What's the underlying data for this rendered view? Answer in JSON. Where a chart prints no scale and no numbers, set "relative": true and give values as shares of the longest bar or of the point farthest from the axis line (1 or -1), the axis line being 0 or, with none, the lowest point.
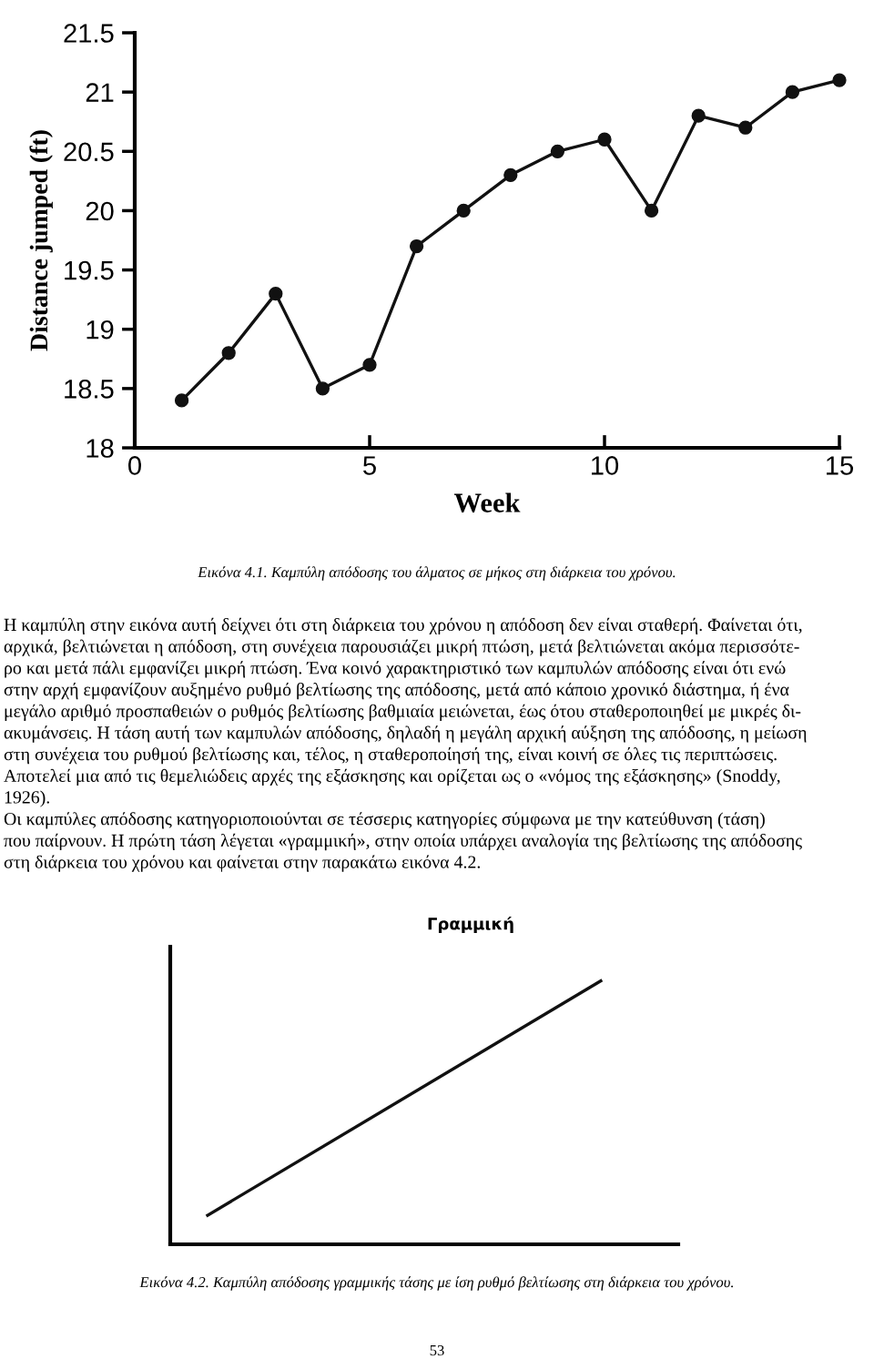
{
  "chart_data": [
    {
      "type": "line",
      "xlabel": "Week",
      "ylabel": "Distance jumped (ft)",
      "x": [
        1,
        2,
        3,
        4,
        5,
        6,
        7,
        8,
        9,
        10,
        11,
        12,
        13,
        14,
        15
      ],
      "series": [
        {
          "color": "#111111",
          "values": [
            18.4,
            18.8,
            19.3,
            18.5,
            18.7,
            19.7,
            20.0,
            20.3,
            20.5,
            20.6,
            20.0,
            20.8,
            20.7,
            21.0,
            21.1
          ]
        }
      ],
      "xlim": [
        0,
        15
      ],
      "xticks": [
        0,
        5,
        10,
        15
      ],
      "ylim": [
        18,
        21.5
      ],
      "yticks": [
        18,
        18.5,
        19,
        19.5,
        20,
        20.5,
        21,
        21.5
      ],
      "marker": "circle",
      "line_style": "solid",
      "grid": false,
      "legend": false,
      "annotations": [
        "Εικόνα 4.1. Καμπύλη απόδοσης του άλματος σε μήκος στη διάρκεια του χρόνου.",
        "Η καμπύλη στην εικόνα αυτή δείχνει ότι στη διάρκεια του χρόνου η απόδοση δεν είναι σταθερή. Φαίνεται ότι,",
        "αρχικά, βελτιώνεται η απόδοση, στη συνέχεια παρουσιάζει μικρή πτώση, μετά βελτιώνεται ακόμα περισσότε-",
        "ρο και μετά πάλι εμφανίζει μικρή πτώση. Ένα κοινό χαρακτηριστικό των καμπυλών απόδοσης είναι ότι ενώ",
        "στην αρχή εμφανίζουν αυξημένο ρυθμό βελτίωσης της απόδοσης, μετά από κάποιο χρονικό διάστημα, ή ένα",
        "μεγάλο αριθμό προσπαθειών ο ρυθμός βελτίωσης βαθμιαία μειώνεται, έως ότου σταθεροποιηθεί με μικρές δι-",
        "ακυμάνσεις. Η τάση αυτή των καμπυλών απόδοσης, δηλαδή η μεγάλη αρχική αύξηση της απόδοσης, η μείωση",
        "στη συνέχεια του ρυθμού βελτίωσης και, τέλος, η σταθεροποίησή της, είναι κοινή σε όλες τις περιπτώσεις.",
        "Αποτελεί μια από τις θεμελιώδεις αρχές της εξάσκησης και ορίζεται ως ο «νόμος της εξάσκησης» (Snoddy,",
        "1926).",
        "Οι καμπύλες απόδοσης κατηγοριοποιούνται σε τέσσερις κατηγορίες σύμφωνα με την κατεύθυνση (τάση)",
        "που παίρνουν. Η πρώτη τάση λέγεται «γραμμική», στην οποία υπάρχει αναλογία της βελτίωσης της απόδοσης",
        "στη διάρκεια του χρόνου και φαίνεται στην παρακάτω εικόνα 4.2."
      ]
    },
    {
      "type": "line",
      "title": "Γραμμική",
      "categories": [
        null,
        null
      ],
      "relative": true,
      "series": [
        {
          "color": "#111111",
          "values": [
            0.11,
            1
          ]
        }
      ],
      "marker": "none",
      "line_style": "solid",
      "grid": false,
      "legend": false,
      "annotations": [
        "Εικόνα 4.2. Καμπύλη απόδοσης γραμμικής τάσης με ίση ρυθμό βελτίωσης στη διάρκεια του χρόνου.",
        "53"
      ]
    }
  ]
}
